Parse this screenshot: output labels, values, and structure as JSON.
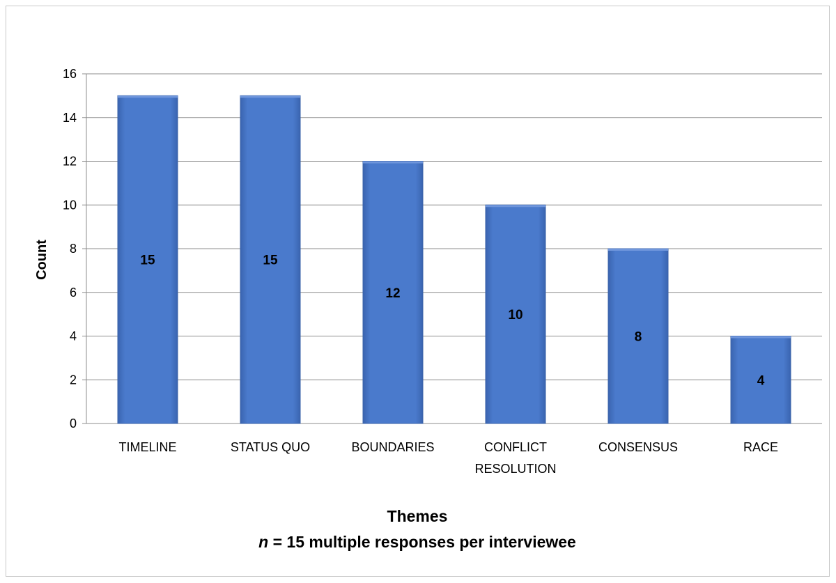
{
  "chart_data": {
    "type": "bar",
    "categories": [
      "TIMELINE",
      "STATUS QUO",
      "BOUNDARIES",
      "CONFLICT RESOLUTION",
      "CONSENSUS",
      "RACE"
    ],
    "category_lines": [
      [
        "TIMELINE"
      ],
      [
        "STATUS QUO"
      ],
      [
        "BOUNDARIES"
      ],
      [
        "CONFLICT",
        "RESOLUTION"
      ],
      [
        "CONSENSUS"
      ],
      [
        "RACE"
      ]
    ],
    "values": [
      15,
      15,
      12,
      10,
      8,
      4
    ],
    "data_labels": [
      "15",
      "15",
      "12",
      "10",
      "8",
      "4"
    ],
    "ylabel": "Count",
    "xlabel": "Themes",
    "xlabel_note_italic": "n",
    "xlabel_note_rest": " = 15 multiple responses per interviewee",
    "ylim": [
      0,
      16
    ],
    "yticks": [
      0,
      2,
      4,
      6,
      8,
      10,
      12,
      14,
      16
    ],
    "grid": true,
    "legend": "none",
    "bar_color": "#4a7acc",
    "bar_edge_color": "#3b63a8",
    "grid_color": "#8c8c8c"
  }
}
